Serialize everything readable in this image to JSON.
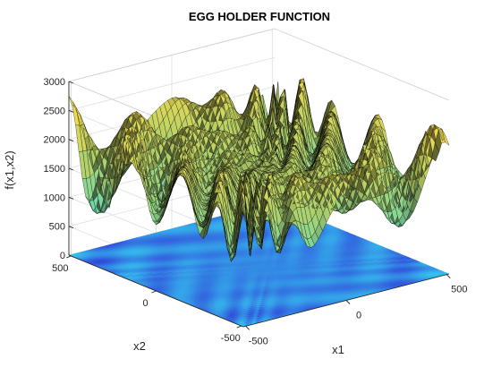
{
  "chart_data": {
    "type": "surface",
    "title": "EGG HOLDER FUNCTION",
    "xlabel": "x1",
    "ylabel": "x2",
    "zlabel": "f(x1,x2)",
    "xlim": [
      -512,
      512
    ],
    "ylim": [
      -512,
      512
    ],
    "zlim": [
      0,
      3000
    ],
    "x_ticks": [
      -500,
      0,
      500
    ],
    "y_ticks": [
      -500,
      0,
      500
    ],
    "z_ticks": [
      0,
      500,
      1000,
      1500,
      2000,
      2500,
      3000
    ],
    "x_tick_labels": [
      "-500",
      "0",
      "500"
    ],
    "y_tick_labels": [
      "-500",
      "0",
      "500"
    ],
    "z_tick_labels": [
      "0",
      "500",
      "1000",
      "1500",
      "2000",
      "2500",
      "3000"
    ],
    "function": "-(x2+47)*sin(sqrt(abs(x2+x1/2+47))) - x1*sin(sqrt(abs(x1-(x2+47))))",
    "z_offset": 1700,
    "grid": true,
    "floor_contour": true,
    "colormap": "parula",
    "colors": {
      "surface_low": "#3cc1b8",
      "surface_mid": "#9fb659",
      "surface_high": "#f5c43a",
      "edge": "#000000",
      "floor_low": "#2f3fd8",
      "floor_high": "#34c3ee",
      "axis": "#262626",
      "grid": "#dedede"
    }
  }
}
